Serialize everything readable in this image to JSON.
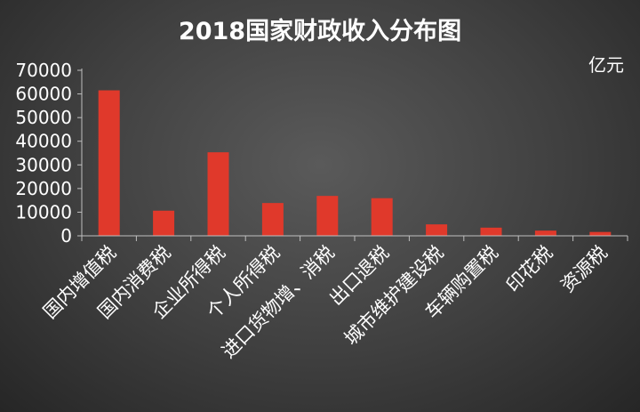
{
  "chart_data": {
    "type": "bar",
    "title": "2018国家财政收入分布图",
    "unit": "亿元",
    "ylim": [
      0,
      70000
    ],
    "yticks": [
      0,
      10000,
      20000,
      30000,
      40000,
      50000,
      60000,
      70000
    ],
    "grid": false,
    "categories": [
      "国内增值税",
      "国内消费税",
      "企业所得税",
      "个人所得税",
      "进口货物增、消税",
      "出口退税",
      "城市维护建设税",
      "车辆购置税",
      "印花税",
      "资源税"
    ],
    "values": [
      61529,
      10632,
      35323,
      13872,
      16879,
      15913,
      4840,
      3453,
      2199,
      1630
    ],
    "colors": {
      "bar": "#e0392b",
      "axis": "#bfbfbf",
      "text": "#ffffff"
    }
  }
}
